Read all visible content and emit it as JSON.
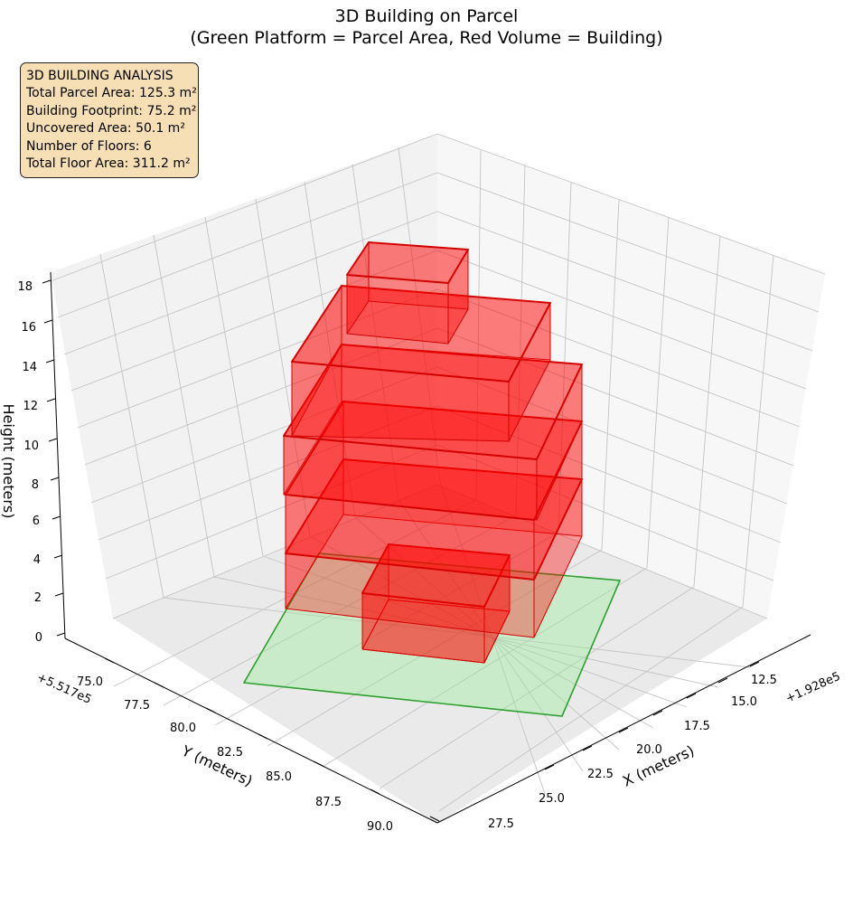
{
  "title": {
    "line1": "3D Building on Parcel",
    "line2": "(Green Platform = Parcel Area, Red Volume = Building)"
  },
  "info_box": {
    "heading": "3D BUILDING ANALYSIS",
    "lines": [
      "Total Parcel Area: 125.3 m²",
      "Building Footprint: 75.2 m²",
      "Uncovered Area: 50.1 m²",
      "Number of Floors: 6",
      "Total Floor Area: 311.2 m²"
    ],
    "background": "#f6deb5"
  },
  "chart_data": {
    "type": "3d",
    "xlabel": "X (meters)",
    "ylabel": "Y (meters)",
    "zlabel": "Height (meters)",
    "x_offset_label": "+1.928e5",
    "y_offset_label": "+5.517e5",
    "x_ticks": [
      "12.5",
      "15.0",
      "17.5",
      "20.0",
      "22.5",
      "25.0",
      "27.5"
    ],
    "y_ticks": [
      "75.0",
      "77.5",
      "80.0",
      "82.5",
      "85.0",
      "87.5",
      "90.0"
    ],
    "z_ticks": [
      "0",
      "2",
      "4",
      "6",
      "8",
      "10",
      "12",
      "14",
      "16",
      "18"
    ],
    "zlim": [
      0,
      18
    ],
    "grid": true,
    "colors": {
      "parcel_fill": "#90ee90",
      "parcel_edge": "#2ca02c",
      "building_fill": "#ff0000",
      "building_edge": "#d40000"
    }
  }
}
